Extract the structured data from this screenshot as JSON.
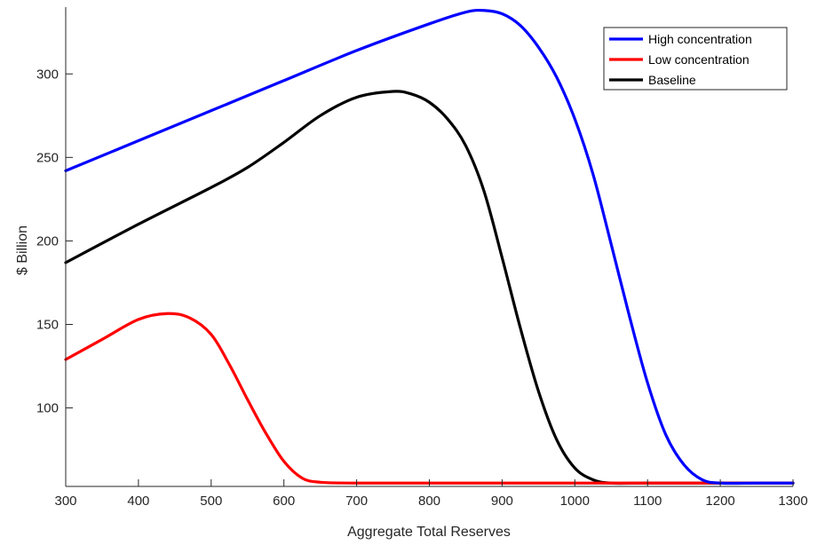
{
  "chart_data": {
    "type": "line",
    "title": "",
    "xlabel": "Aggregate Total Reserves",
    "ylabel": "$ Billion",
    "xlim": [
      300,
      1300
    ],
    "ylim": [
      53,
      340
    ],
    "xticks": [
      300,
      400,
      500,
      600,
      700,
      800,
      900,
      1000,
      1100,
      1200,
      1300
    ],
    "yticks": [
      100,
      150,
      200,
      250,
      300
    ],
    "grid": false,
    "legend_position": "top-right",
    "series": [
      {
        "name": "High concentration",
        "color": "#0000ff",
        "points": [
          [
            300,
            242
          ],
          [
            400,
            260
          ],
          [
            500,
            278
          ],
          [
            600,
            296
          ],
          [
            700,
            314
          ],
          [
            800,
            330
          ],
          [
            850,
            337
          ],
          [
            875,
            338
          ],
          [
            900,
            336
          ],
          [
            925,
            329
          ],
          [
            950,
            316
          ],
          [
            975,
            298
          ],
          [
            1000,
            273
          ],
          [
            1025,
            240
          ],
          [
            1050,
            198
          ],
          [
            1075,
            155
          ],
          [
            1100,
            115
          ],
          [
            1125,
            84
          ],
          [
            1150,
            66
          ],
          [
            1175,
            57
          ],
          [
            1200,
            55
          ],
          [
            1250,
            55
          ],
          [
            1300,
            55
          ]
        ]
      },
      {
        "name": "Low concentration",
        "color": "#ff0000",
        "points": [
          [
            300,
            129
          ],
          [
            350,
            141
          ],
          [
            400,
            153
          ],
          [
            440,
            156.5
          ],
          [
            470,
            154
          ],
          [
            500,
            144
          ],
          [
            525,
            126
          ],
          [
            550,
            105
          ],
          [
            575,
            85
          ],
          [
            600,
            68
          ],
          [
            625,
            58
          ],
          [
            650,
            55.5
          ],
          [
            700,
            55
          ],
          [
            800,
            55
          ],
          [
            900,
            55
          ],
          [
            1000,
            55
          ],
          [
            1100,
            55
          ],
          [
            1200,
            55
          ],
          [
            1300,
            55
          ]
        ]
      },
      {
        "name": "Baseline",
        "color": "#000000",
        "points": [
          [
            300,
            187
          ],
          [
            400,
            210
          ],
          [
            500,
            232
          ],
          [
            550,
            244
          ],
          [
            600,
            259
          ],
          [
            650,
            275
          ],
          [
            700,
            286
          ],
          [
            750,
            289.5
          ],
          [
            775,
            288
          ],
          [
            800,
            283
          ],
          [
            825,
            273
          ],
          [
            850,
            257
          ],
          [
            875,
            230
          ],
          [
            900,
            190
          ],
          [
            925,
            148
          ],
          [
            950,
            110
          ],
          [
            975,
            81
          ],
          [
            1000,
            64
          ],
          [
            1025,
            57
          ],
          [
            1050,
            55
          ],
          [
            1100,
            55
          ],
          [
            1200,
            55
          ],
          [
            1300,
            55
          ]
        ]
      }
    ]
  }
}
